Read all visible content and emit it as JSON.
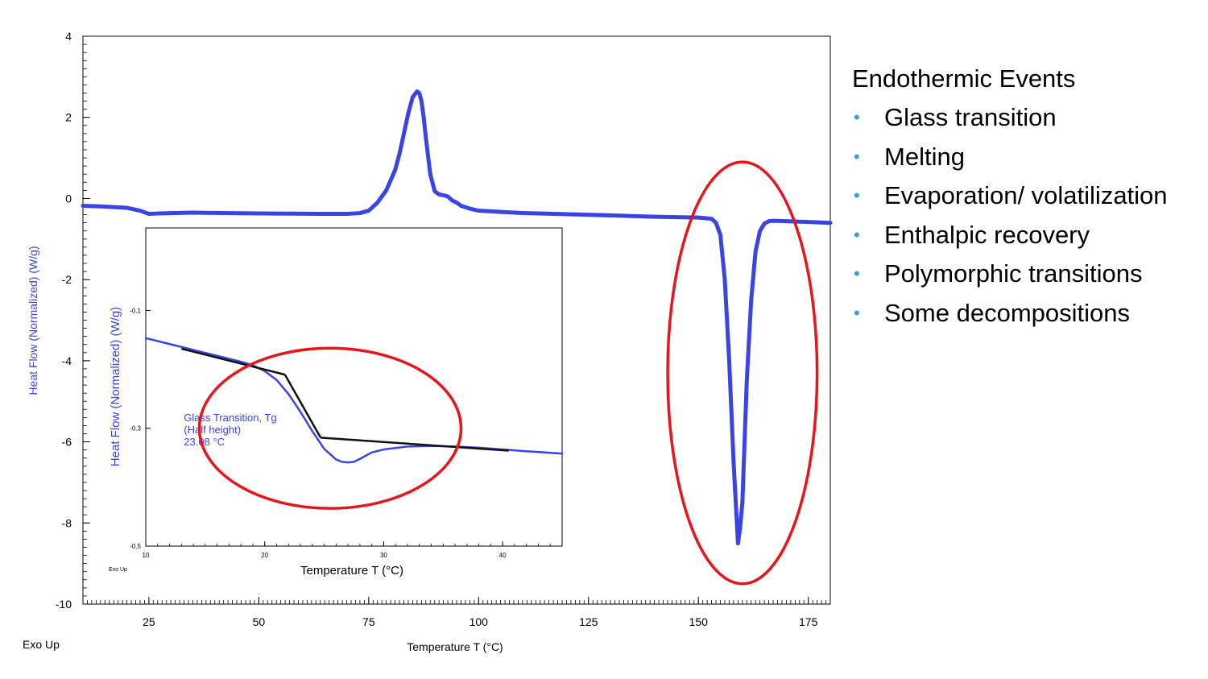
{
  "colors": {
    "curve": "#3a43e4",
    "ellipse": "#e8151b",
    "tangent": "#111111",
    "bullet": "#3b9be0",
    "ylabel": "#3a43e4"
  },
  "chart_data": [
    {
      "type": "line",
      "title": "",
      "xlabel": "Temperature  T (°C)",
      "ylabel": "Heat Flow (Normalized)  (W/g)",
      "corner_label": "Exo Up",
      "xlim": [
        10,
        180
      ],
      "ylim": [
        -10,
        4
      ],
      "xticks": [
        25,
        50,
        75,
        100,
        125,
        150,
        175
      ],
      "yticks": [
        4,
        2,
        0,
        -2,
        -4,
        -6,
        -8,
        -10
      ],
      "grid": false,
      "series": [
        {
          "x": [
            10,
            15,
            20,
            23,
            25,
            27,
            35,
            50,
            65,
            70,
            73,
            75,
            77,
            79,
            81,
            82,
            83,
            84,
            85,
            86,
            86.5,
            87,
            87.5,
            88,
            89,
            90,
            91,
            92,
            93,
            94,
            95,
            96,
            98,
            100,
            110,
            125,
            140,
            150,
            153,
            154,
            155,
            156,
            157,
            158,
            159,
            159.5,
            160,
            160.5,
            161,
            162,
            163,
            164,
            165,
            166,
            167,
            170,
            175,
            180
          ],
          "y": [
            -0.18,
            -0.2,
            -0.23,
            -0.3,
            -0.38,
            -0.37,
            -0.35,
            -0.37,
            -0.38,
            -0.38,
            -0.36,
            -0.3,
            -0.1,
            0.2,
            0.7,
            1.1,
            1.6,
            2.1,
            2.5,
            2.64,
            2.6,
            2.4,
            2.0,
            1.5,
            0.6,
            0.18,
            0.1,
            0.08,
            0.05,
            -0.05,
            -0.1,
            -0.18,
            -0.25,
            -0.3,
            -0.36,
            -0.4,
            -0.45,
            -0.47,
            -0.5,
            -0.6,
            -0.9,
            -2.0,
            -4.0,
            -6.5,
            -8.5,
            -8.1,
            -7.5,
            -6.0,
            -4.5,
            -2.5,
            -1.3,
            -0.8,
            -0.62,
            -0.56,
            -0.55,
            -0.56,
            -0.58,
            -0.6
          ]
        }
      ],
      "annotations": [
        {
          "type": "ellipse",
          "center": [
            160,
            -4.3
          ],
          "x_radius": 17,
          "y_radius": 5.2
        }
      ]
    },
    {
      "type": "line",
      "title": "",
      "xlabel": "Temperature  T (°C)",
      "ylabel": "Heat Flow (Normalized)  (W/g)",
      "corner_label": "Exo Up",
      "xlim": [
        10,
        45
      ],
      "ylim": [
        -0.5,
        0.04
      ],
      "xticks": [
        10,
        20,
        30,
        40
      ],
      "yticks": [
        -0.1,
        -0.3,
        -0.5
      ],
      "grid": false,
      "series": [
        {
          "x": [
            10,
            12,
            14,
            16,
            18,
            19,
            20,
            21,
            22,
            23,
            24,
            25,
            26,
            26.5,
            27,
            27.5,
            28,
            29,
            30,
            32,
            34,
            36,
            38,
            40,
            42,
            45
          ],
          "y": [
            -0.147,
            -0.157,
            -0.167,
            -0.177,
            -0.187,
            -0.193,
            -0.203,
            -0.218,
            -0.242,
            -0.272,
            -0.305,
            -0.335,
            -0.353,
            -0.357,
            -0.358,
            -0.357,
            -0.352,
            -0.341,
            -0.336,
            -0.331,
            -0.33,
            -0.331,
            -0.333,
            -0.336,
            -0.339,
            -0.343
          ]
        }
      ],
      "tangent_lines": [
        {
          "x": [
            13,
            21.7
          ],
          "y": [
            -0.165,
            -0.209
          ]
        },
        {
          "x": [
            21.7,
            24.7
          ],
          "y": [
            -0.209,
            -0.316
          ]
        },
        {
          "x": [
            24.7,
            40.5
          ],
          "y": [
            -0.316,
            -0.338
          ]
        }
      ],
      "annotations": [
        {
          "type": "text",
          "lines": [
            "Glass Transition, Tg",
            "(Half height)",
            "23.08 °C"
          ],
          "at": [
            13.2,
            -0.288
          ]
        },
        {
          "type": "ellipse",
          "center": [
            25.5,
            -0.3
          ],
          "x_radius": 11,
          "y_radius": 0.136
        }
      ]
    }
  ],
  "events": {
    "title": "Endothermic Events",
    "bullet": "•",
    "items": [
      "Glass transition",
      "Melting",
      "Evaporation/ volatilization",
      "Enthalpic recovery",
      "Polymorphic transitions",
      "Some decompositions"
    ]
  }
}
